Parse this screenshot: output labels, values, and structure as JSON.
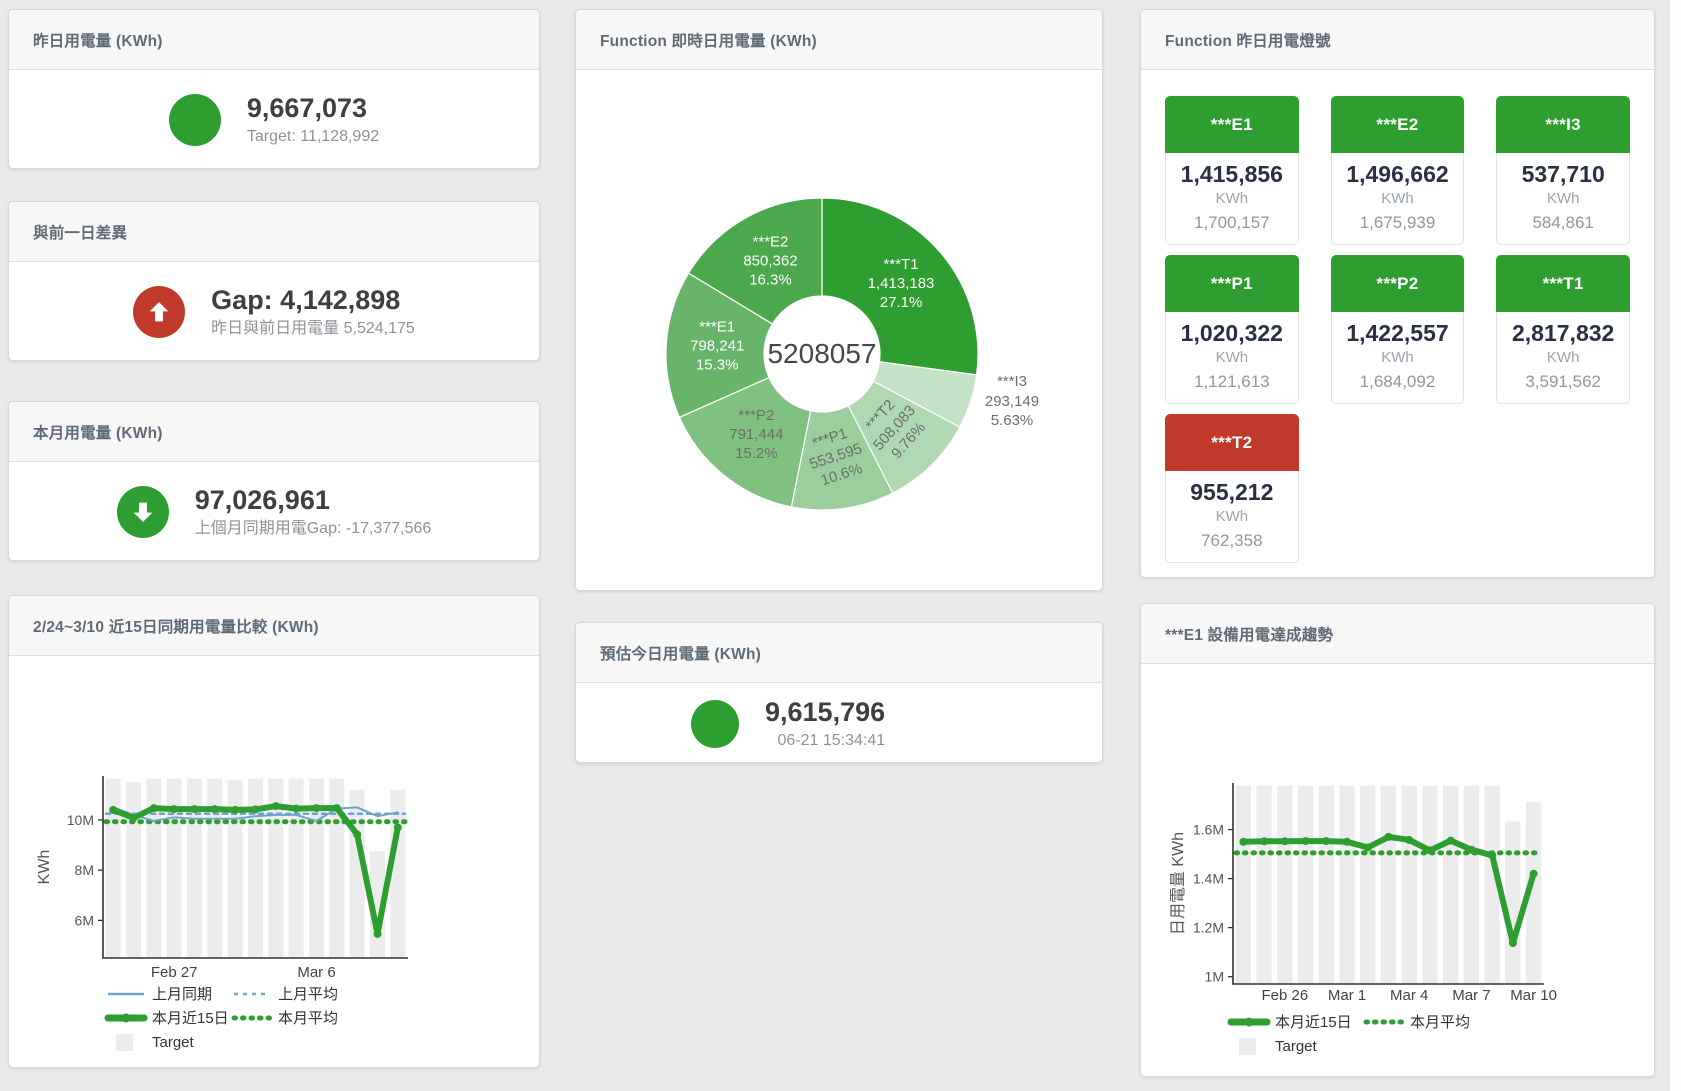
{
  "colors": {
    "green": "#2f9e31",
    "red": "#c0392b",
    "blue_line": "#6fa3cf",
    "target_bar": "#ececec",
    "axis": "#333333",
    "tick_text": "#555555"
  },
  "stat_panels": {
    "yesterday": {
      "title": "昨日用電量 (KWh)",
      "value": "9,667,073",
      "sub": "Target: 11,128,992",
      "icon": "circle",
      "icon_color": "#2f9e31"
    },
    "day_gap": {
      "title": "與前一日差異",
      "value": "Gap: 4,142,898",
      "sub": "昨日與前日用電量 5,524,175",
      "icon": "arrow-up",
      "icon_color": "#c0392b"
    },
    "month": {
      "title": "本月用電量 (KWh)",
      "value": "97,026,961",
      "sub": "上個月同期用電Gap: -17,377,566",
      "icon": "arrow-down",
      "icon_color": "#2f9e31"
    },
    "estimate": {
      "title": "預估今日用電量 (KWh)",
      "value": "9,615,796",
      "sub": "06-21 15:34:41",
      "icon": "circle",
      "icon_color": "#2f9e31"
    }
  },
  "lights": {
    "title": "Function 昨日用電燈號",
    "status_colors": {
      "green": "#2f9e31",
      "red": "#c0392b"
    },
    "tiles": [
      {
        "label": "***E1",
        "value": "1,415,856",
        "unit": "KWh",
        "target": "1,700,157",
        "status": "green"
      },
      {
        "label": "***E2",
        "value": "1,496,662",
        "unit": "KWh",
        "target": "1,675,939",
        "status": "green"
      },
      {
        "label": "***I3",
        "value": "537,710",
        "unit": "KWh",
        "target": "584,861",
        "status": "green"
      },
      {
        "label": "***P1",
        "value": "1,020,322",
        "unit": "KWh",
        "target": "1,121,613",
        "status": "green"
      },
      {
        "label": "***P2",
        "value": "1,422,557",
        "unit": "KWh",
        "target": "1,684,092",
        "status": "green"
      },
      {
        "label": "***T1",
        "value": "2,817,832",
        "unit": "KWh",
        "target": "3,591,562",
        "status": "green"
      },
      {
        "label": "***T2",
        "value": "955,212",
        "unit": "KWh",
        "target": "762,358",
        "status": "red"
      }
    ]
  },
  "chart_data": [
    {
      "id": "realtime_donut",
      "type": "pie",
      "title": "Function 即時日用電量 (KWh)",
      "center_total": "5208057",
      "slices": [
        {
          "name": "***T1",
          "value": 1413183,
          "value_str": "1,413,183",
          "pct": "27.1%",
          "color": "#2f9e31",
          "label_color": "#ffffff"
        },
        {
          "name": "***I3",
          "value": 293149,
          "value_str": "293,149",
          "pct": "5.63%",
          "color": "#c4e2c5",
          "label_color": "#6d6d6d",
          "label_outside": true
        },
        {
          "name": "***T2",
          "value": 508083,
          "value_str": "508,083",
          "pct": "9.76%",
          "color": "#b0d9b1",
          "label_color": "#6d6d6d",
          "rotate": -48
        },
        {
          "name": "***P1",
          "value": 553595,
          "value_str": "553,595",
          "pct": "10.6%",
          "color": "#9bce9c",
          "label_color": "#6d6d6d",
          "rotate": -18
        },
        {
          "name": "***P2",
          "value": 791444,
          "value_str": "791,444",
          "pct": "15.2%",
          "color": "#80c181",
          "label_color": "#6d6d6d"
        },
        {
          "name": "***E1",
          "value": 798241,
          "value_str": "798,241",
          "pct": "15.3%",
          "color": "#68b46a",
          "label_color": "#ffffff"
        },
        {
          "name": "***E2",
          "value": 850362,
          "value_str": "850,362",
          "pct": "16.3%",
          "color": "#4ba84d",
          "label_color": "#ffffff"
        }
      ]
    },
    {
      "id": "compare_15day",
      "type": "line",
      "title": "2/24~3/10 近15日同期用電量比較 (KWh)",
      "ylabel": "KWh",
      "categories": [
        "Feb 24",
        "Feb 25",
        "Feb 26",
        "Feb 27",
        "Feb 28",
        "Mar 1",
        "Mar 2",
        "Mar 3",
        "Mar 4",
        "Mar 5",
        "Mar 6",
        "Mar 7",
        "Mar 8",
        "Mar 9",
        "Mar 10"
      ],
      "x_ticks": [
        {
          "idx": 3,
          "label": "Feb 27"
        },
        {
          "idx": 10,
          "label": "Mar 6"
        }
      ],
      "y_ticks": [
        {
          "v": 6000000,
          "label": "6M"
        },
        {
          "v": 8000000,
          "label": "8M"
        },
        {
          "v": 10000000,
          "label": "10M"
        }
      ],
      "ylim": [
        4500000,
        11750000
      ],
      "bar_color": "#ececec",
      "target_bars": [
        11650000,
        11500000,
        11650000,
        11650000,
        11650000,
        11650000,
        11600000,
        11650000,
        11650000,
        11650000,
        11650000,
        11650000,
        11200000,
        8750000,
        11200000
      ],
      "series": [
        {
          "name": "上月同期",
          "color": "#6fa3cf",
          "width": 2,
          "values": [
            10500000,
            10200000,
            9960000,
            10100000,
            10050000,
            10050000,
            10050000,
            10150000,
            10200000,
            10200000,
            9960000,
            10450000,
            10500000,
            10150000,
            10300000
          ]
        },
        {
          "name": "本月近15日",
          "color": "#2f9e31",
          "width": 6,
          "marker": true,
          "values": [
            10400000,
            10080000,
            10470000,
            10430000,
            10430000,
            10430000,
            10400000,
            10420000,
            10550000,
            10450000,
            10470000,
            10470000,
            9420000,
            5460000,
            9700000
          ]
        }
      ],
      "avg_lines": [
        {
          "name": "上月平均",
          "color": "#6fa3cf",
          "width": 2.5,
          "dash": "4 5",
          "value": 10250000
        },
        {
          "name": "本月平均",
          "color": "#2f9e31",
          "width": 5,
          "dash": "1.5 7",
          "value": 9930000
        }
      ],
      "legend": [
        {
          "label": "上月同期",
          "color": "#6fa3cf",
          "swatch": "line"
        },
        {
          "label": "上月平均",
          "color": "#6fa3cf",
          "swatch": "dashed"
        },
        {
          "label": "本月近15日",
          "color": "#2f9e31",
          "swatch": "thickline"
        },
        {
          "label": "本月平均",
          "color": "#2f9e31",
          "swatch": "dots"
        },
        {
          "label": "Target",
          "color": "#ececec",
          "swatch": "square"
        }
      ]
    },
    {
      "id": "e1_trend",
      "type": "line",
      "title": "***E1 設備用電達成趨勢",
      "ylabel": "日用電量 KWh",
      "categories": [
        "Feb 24",
        "Feb 25",
        "Feb 26",
        "Feb 27",
        "Feb 28",
        "Mar 1",
        "Mar 2",
        "Mar 3",
        "Mar 4",
        "Mar 5",
        "Mar 6",
        "Mar 7",
        "Mar 8",
        "Mar 9",
        "Mar 10"
      ],
      "x_ticks": [
        {
          "idx": 2,
          "label": "Feb 26"
        },
        {
          "idx": 5,
          "label": "Mar 1"
        },
        {
          "idx": 8,
          "label": "Mar 4"
        },
        {
          "idx": 11,
          "label": "Mar 7"
        },
        {
          "idx": 14,
          "label": "Mar 10"
        }
      ],
      "y_ticks": [
        {
          "v": 1000000,
          "label": "1M"
        },
        {
          "v": 1200000,
          "label": "1.2M"
        },
        {
          "v": 1400000,
          "label": "1.4M"
        },
        {
          "v": 1600000,
          "label": "1.6M"
        }
      ],
      "ylim": [
        970000,
        1790000
      ],
      "bar_color": "#ececec",
      "target_bars": [
        1780000,
        1780000,
        1780000,
        1780000,
        1780000,
        1780000,
        1780000,
        1780000,
        1780000,
        1780000,
        1780000,
        1780000,
        1780000,
        1633000,
        1712000
      ],
      "series": [
        {
          "name": "本月近15日",
          "color": "#2f9e31",
          "width": 6,
          "marker": true,
          "values": [
            1550000,
            1552000,
            1552000,
            1553000,
            1553000,
            1550000,
            1527000,
            1570000,
            1558000,
            1515000,
            1555000,
            1518000,
            1495000,
            1137000,
            1420000
          ]
        }
      ],
      "avg_lines": [
        {
          "name": "本月平均",
          "color": "#2f9e31",
          "width": 5,
          "dash": "1.5 7",
          "value": 1505000
        }
      ],
      "legend": [
        {
          "label": "本月近15日",
          "color": "#2f9e31",
          "swatch": "thickline"
        },
        {
          "label": "本月平均",
          "color": "#2f9e31",
          "swatch": "dots"
        },
        {
          "label": "Target",
          "color": "#ececec",
          "swatch": "square"
        }
      ]
    }
  ]
}
